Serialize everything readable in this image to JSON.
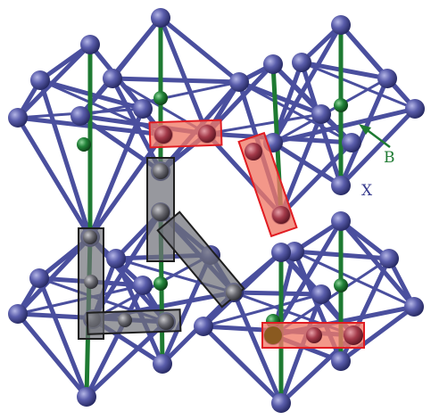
{
  "labels": {
    "b_label": "B",
    "x_label": "X"
  },
  "colors": {
    "x_atom": "#5457a6",
    "b_atom": "#1e7a32",
    "bond": "#4a4f9e",
    "b_bond": "#1e7a32",
    "red_fill": "#f07a68",
    "red_stroke": "#e11c22",
    "gray_fill": "#6f7078",
    "gray_stroke": "#1e1e1e"
  }
}
